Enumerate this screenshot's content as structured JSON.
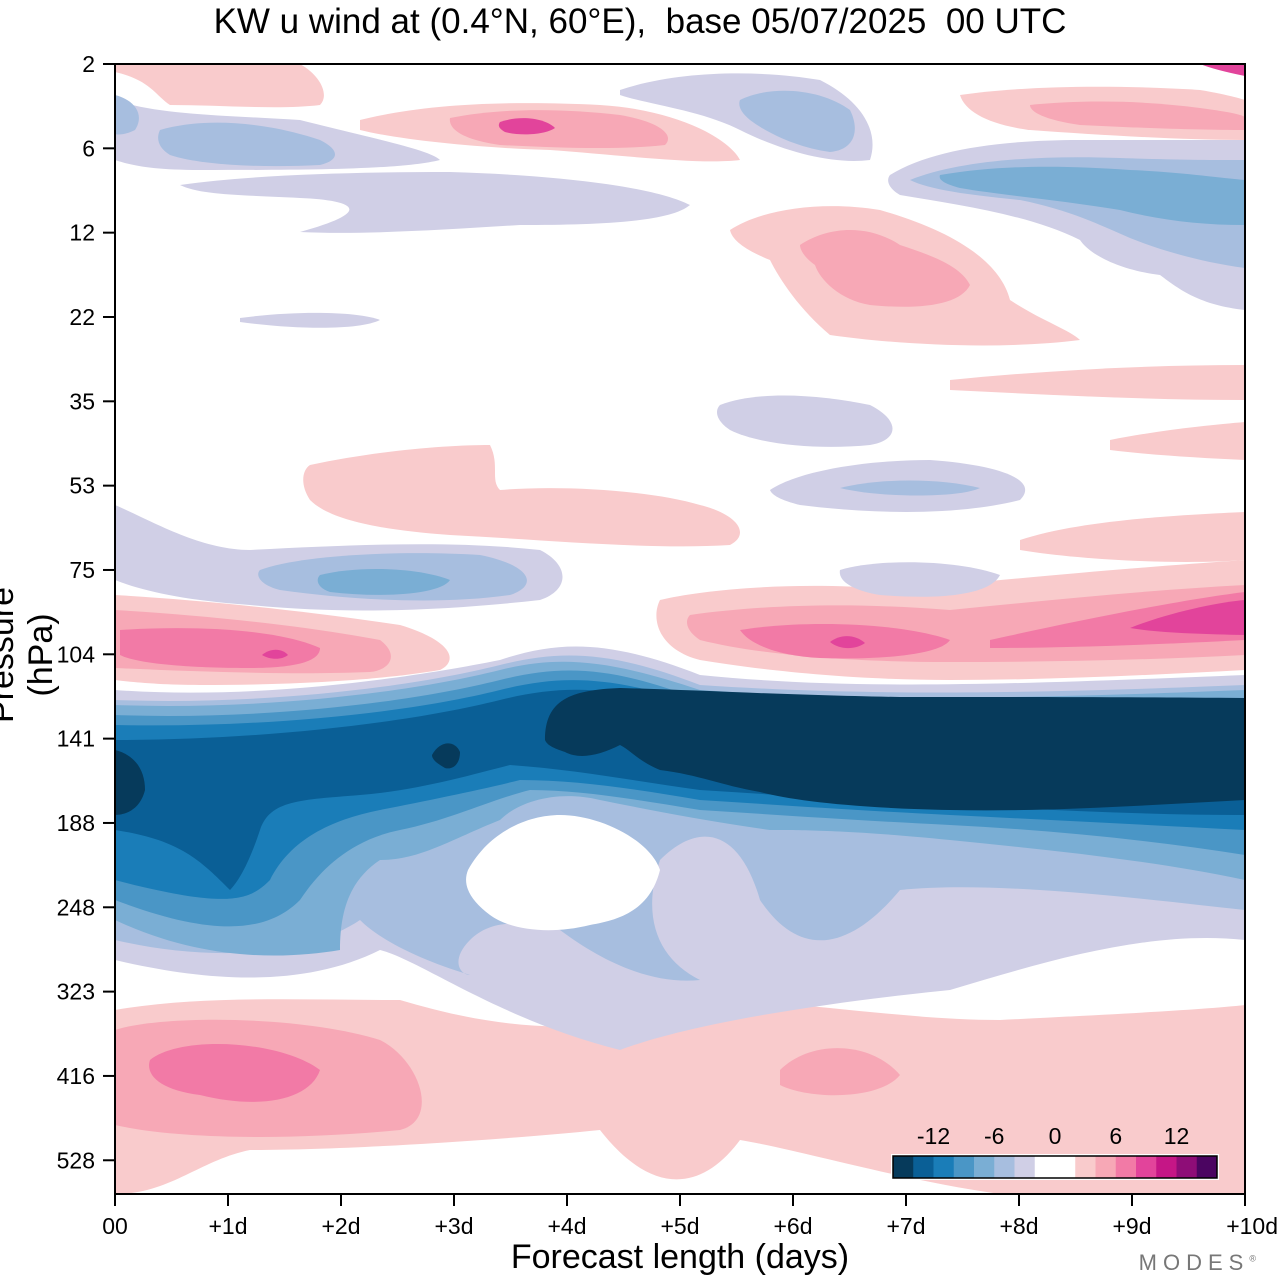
{
  "chart_data": {
    "type": "heatmap",
    "title": "KW u wind at (0.4°N, 60°E),  base 05/07/2025  00 UTC",
    "xlabel": "Forecast length (days)",
    "ylabel": "Pressure (hPa)",
    "x_ticks": [
      "00",
      "+1d",
      "+2d",
      "+3d",
      "+4d",
      "+5d",
      "+6d",
      "+7d",
      "+8d",
      "+9d",
      "+10d"
    ],
    "x_range_days": [
      0,
      10
    ],
    "y_ticks": [
      "2",
      "6",
      "12",
      "22",
      "35",
      "53",
      "75",
      "104",
      "141",
      "188",
      "248",
      "323",
      "416",
      "528"
    ],
    "y_axis_scale": "log, pressure decreasing upward",
    "colorbar": {
      "tick_labels": [
        "-12",
        "-6",
        "0",
        "6",
        "12"
      ],
      "levels": [
        -16,
        -14,
        -12,
        -10,
        -8,
        -6,
        -4,
        -2,
        0,
        2,
        4,
        6,
        8,
        10,
        12,
        14
      ],
      "colors": [
        "#063a5b",
        "#0a5f96",
        "#1a7db8",
        "#4a96c6",
        "#7aaed4",
        "#a7bedf",
        "#d0cfe6",
        "#ffffff",
        "#ffffff",
        "#f9cbcc",
        "#f7a8b6",
        "#f27aa6",
        "#e2449b",
        "#c51686",
        "#8e0d77",
        "#4b0561"
      ]
    },
    "contour_regions": [
      {
        "level": -16,
        "days": [
          [
            0.0,
            0.3
          ]
        ],
        "pressure": [
          130,
          200
        ]
      },
      {
        "level": -16,
        "days": [
          [
            3.85,
            10.0
          ]
        ],
        "pressure": [
          100,
          180
        ]
      },
      {
        "level": -14,
        "days": [
          [
            1.6,
            3.5
          ]
        ],
        "pressure": [
          125,
          190
        ]
      },
      {
        "level": -12,
        "days": [
          [
            0.0,
            3.5
          ]
        ],
        "pressure": [
          120,
          260
        ]
      },
      {
        "level": -8,
        "days": [
          [
            0.0,
            10.0
          ]
        ],
        "pressure": [
          110,
          300
        ]
      },
      {
        "level": -4,
        "days": [
          [
            0.0,
            10.0
          ]
        ],
        "pressure": [
          100,
          360
        ]
      },
      {
        "level": -4,
        "days": [
          [
            1.3,
            4.0
          ]
        ],
        "pressure": [
          60,
          95
        ]
      },
      {
        "level": -4,
        "days": [
          [
            7.0,
            10.0
          ]
        ],
        "pressure": [
          7,
          14
        ]
      },
      {
        "level": 2,
        "days": [
          [
            0.0,
            10.0
          ]
        ],
        "pressure": [
          330,
          560
        ]
      },
      {
        "level": 4,
        "days": [
          [
            0.0,
            10.0
          ]
        ],
        "pressure": [
          88,
          120
        ]
      },
      {
        "level": 6,
        "days": [
          [
            0.1,
            1.9
          ]
        ],
        "pressure": [
          95,
          112
        ]
      },
      {
        "level": 8,
        "days": [
          [
            6.2,
            10.0
          ]
        ],
        "pressure": [
          92,
          112
        ]
      },
      {
        "level": 8,
        "days": [
          [
            0.3,
            1.9
          ]
        ],
        "pressure": [
          360,
          460
        ]
      },
      {
        "level": 8,
        "days": [
          [
            3.2,
            4.6
          ]
        ],
        "pressure": [
          4,
          6
        ]
      },
      {
        "level": 6,
        "days": [
          [
            6.0,
            7.7
          ]
        ],
        "pressure": [
          11,
          22
        ]
      },
      {
        "level": 2,
        "days": [
          [
            1.8,
            5.6
          ]
        ],
        "pressure": [
          45,
          62
        ]
      }
    ]
  },
  "brand": {
    "name": "MODES",
    "mark": "®"
  },
  "colors": {
    "axis": "#000000",
    "background": "#ffffff"
  }
}
